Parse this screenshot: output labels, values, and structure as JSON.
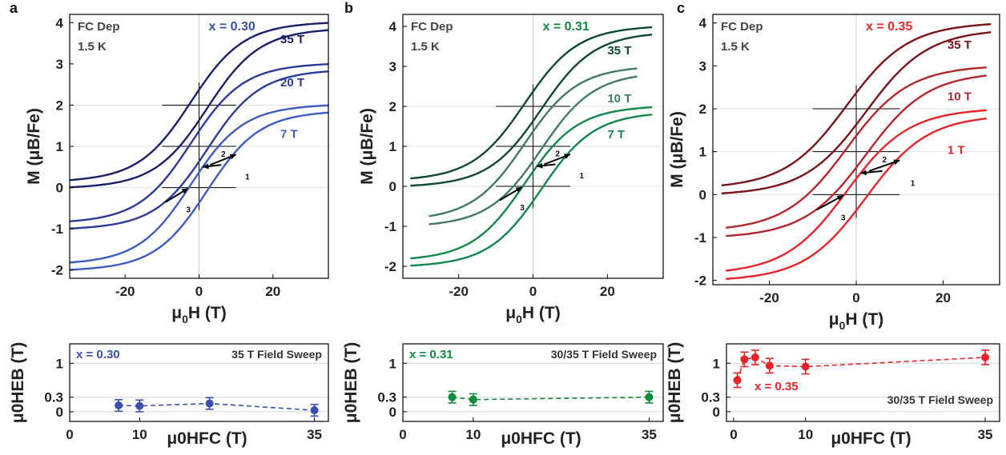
{
  "figure": {
    "panels": [
      {
        "letter": "a",
        "color": "#3a4fb0",
        "curve_colors": [
          "#1a1f6b",
          "#2b3b9a",
          "#3d5cc2",
          "#2a7fd0"
        ],
        "top": {
          "xlabel_main": "μ",
          "xlabel_sub": "0",
          "xlabel_rest": "H (T)",
          "ylabel": "M (μB/Fe)",
          "text_fc": "FC Dep",
          "text_temp": "1.5 K",
          "text_x": "x = 0.30",
          "field_labels": [
            "35 T",
            "20 T",
            "7 T"
          ],
          "sweep_numbers": [
            "1",
            "2",
            "3"
          ]
        },
        "bottom": {
          "text_x": "x = 0.30",
          "text_sweep": "35 T Field Sweep"
        }
      },
      {
        "letter": "b",
        "color": "#0f8a3e",
        "curve_colors": [
          "#0f4a30",
          "#3f7a62",
          "#12874a"
        ],
        "top": {
          "xlabel_main": "μ",
          "xlabel_sub": "0",
          "xlabel_rest": "H (T)",
          "ylabel": "M (μB/Fe)",
          "text_fc": "FC Dep",
          "text_temp": "1.5 K",
          "text_x": "x = 0.31",
          "field_labels": [
            "35 T",
            "10 T",
            "7 T"
          ],
          "sweep_numbers": [
            "1",
            "2",
            "3"
          ]
        },
        "bottom": {
          "text_x": "x = 0.31",
          "text_sweep": "30/35 T Field Sweep"
        }
      },
      {
        "letter": "c",
        "color": "#e8242a",
        "curve_colors": [
          "#7a1418",
          "#b3262d",
          "#e8242a"
        ],
        "top": {
          "xlabel_main": "μ",
          "xlabel_sub": "0",
          "xlabel_rest": "H (T)",
          "ylabel": "M (μB/Fe)",
          "text_fc": "FC Dep",
          "text_temp": "1.5 K",
          "text_x": "x = 0.35",
          "field_labels": [
            "35 T",
            "10 T",
            "1 T"
          ],
          "sweep_numbers": [
            "1",
            "2",
            "3"
          ]
        },
        "bottom": {
          "text_x": "x = 0.35",
          "text_sweep": "30/35 T Field Sweep"
        }
      }
    ],
    "bottom_xlabel": "μ0HFC (T)",
    "bottom_ylabel": "μ0HEB (T)"
  },
  "chart_data": [
    {
      "type": "line",
      "panel": "a",
      "xlabel": "μ0H (T)",
      "ylabel": "M (μB/Fe)",
      "xlim": [
        -35,
        35
      ],
      "ylim": [
        -2.2,
        4.2
      ],
      "xticks": [
        -20,
        0,
        20
      ],
      "yticks": [
        -2,
        -1,
        0,
        1,
        2,
        3,
        4
      ],
      "grid": "zero lines only",
      "series": [
        {
          "name": "35 T",
          "offset": 2,
          "x": [
            -35,
            -25,
            -15,
            -10,
            -5,
            0,
            5,
            10,
            15,
            20,
            25,
            30,
            35
          ],
          "values": [
            -2.0,
            -1.6,
            -1.0,
            -0.6,
            -0.25,
            0.1,
            0.3,
            0.55,
            0.9,
            1.3,
            1.65,
            1.9,
            2.05
          ]
        },
        {
          "name": "20 T",
          "offset": 1,
          "x": [
            -35,
            -25,
            -15,
            -10,
            -5,
            0,
            5,
            10,
            15,
            20,
            25,
            30,
            35
          ],
          "values": [
            -2.05,
            -1.65,
            -1.05,
            -0.65,
            -0.3,
            0.1,
            0.3,
            0.55,
            0.9,
            1.3,
            1.65,
            1.9,
            2.05
          ]
        },
        {
          "name": "7 T",
          "offset": 0,
          "x": [
            -35,
            -25,
            -15,
            -10,
            -5,
            0,
            5,
            10,
            15,
            20,
            25,
            30,
            35
          ],
          "values": [
            -2.05,
            -1.7,
            -1.1,
            -0.7,
            -0.3,
            0.1,
            0.3,
            0.55,
            0.9,
            1.3,
            1.65,
            1.9,
            2.05
          ]
        }
      ]
    },
    {
      "type": "line",
      "panel": "b",
      "xlabel": "μ0H (T)",
      "ylabel": "M (μB/Fe)",
      "xlim": [
        -35,
        35
      ],
      "ylim": [
        -2.3,
        4.3
      ],
      "xticks": [
        -20,
        0,
        20
      ],
      "yticks": [
        -2,
        -1,
        0,
        1,
        2,
        3,
        4
      ],
      "grid": "zero lines only",
      "series": [
        {
          "name": "35 T",
          "offset": 2,
          "x": [
            -33,
            -25,
            -18,
            -12,
            -6,
            0,
            6,
            12,
            18,
            25,
            32
          ],
          "values": [
            -1.7,
            -1.55,
            -1.2,
            -0.65,
            -0.2,
            0.05,
            0.3,
            0.7,
            1.3,
            1.65,
            1.8
          ]
        },
        {
          "name": "10 T",
          "offset": 1,
          "x": [
            -28,
            -22,
            -16,
            -10,
            -5,
            0,
            5,
            10,
            16,
            22,
            28
          ],
          "values": [
            -1.65,
            -1.45,
            -1.05,
            -0.55,
            -0.2,
            0.05,
            0.3,
            0.6,
            1.1,
            1.45,
            1.65
          ]
        },
        {
          "name": "7 T",
          "offset": 0,
          "x": [
            -33,
            -25,
            -18,
            -12,
            -6,
            0,
            6,
            12,
            18,
            25,
            32
          ],
          "values": [
            -1.72,
            -1.57,
            -1.22,
            -0.67,
            -0.22,
            0.05,
            0.3,
            0.7,
            1.3,
            1.65,
            1.8
          ]
        }
      ]
    },
    {
      "type": "line",
      "panel": "c",
      "xlabel": "μ0H (T)",
      "ylabel": "M (μB/Fe)",
      "xlim": [
        -33,
        33
      ],
      "ylim": [
        -2.1,
        4.2
      ],
      "xticks": [
        -20,
        0,
        20
      ],
      "yticks": [
        -2,
        -1,
        0,
        1,
        2,
        3,
        4
      ],
      "grid": "zero lines only",
      "series": [
        {
          "name": "35 T",
          "offset": 2,
          "x": [
            -31,
            -25,
            -18,
            -12,
            -6,
            0,
            6,
            12,
            18,
            25,
            31
          ],
          "values": [
            -1.65,
            -1.5,
            -1.1,
            -0.65,
            -0.25,
            0.0,
            0.3,
            0.7,
            1.2,
            1.55,
            1.7
          ]
        },
        {
          "name": "10 T",
          "offset": 1,
          "x": [
            -30,
            -24,
            -18,
            -12,
            -6,
            0,
            6,
            12,
            18,
            24,
            30
          ],
          "values": [
            -1.55,
            -1.4,
            -1.05,
            -0.6,
            -0.25,
            0.0,
            0.3,
            0.6,
            1.05,
            1.45,
            1.6
          ]
        },
        {
          "name": "1 T",
          "offset": 0,
          "x": [
            -30,
            -24,
            -18,
            -12,
            -6,
            0,
            6,
            12,
            18,
            24,
            30
          ],
          "values": [
            -1.6,
            -1.4,
            -1.0,
            -0.55,
            -0.25,
            0.0,
            0.25,
            0.55,
            0.95,
            1.4,
            1.55
          ]
        }
      ]
    },
    {
      "type": "scatter",
      "panel": "a-bottom",
      "xlabel": "μ0HFC (T)",
      "ylabel": "μ0HEB (T)",
      "xlim": [
        0,
        37
      ],
      "ylim": [
        -0.2,
        1.4
      ],
      "xticks": [
        0,
        10,
        35
      ],
      "yticks": [
        0,
        0.3,
        1
      ],
      "x": [
        7,
        10,
        20,
        35
      ],
      "values": [
        0.13,
        0.12,
        0.17,
        0.03
      ],
      "errors": [
        0.12,
        0.12,
        0.12,
        0.12
      ]
    },
    {
      "type": "scatter",
      "panel": "b-bottom",
      "xlabel": "μ0HFC (T)",
      "ylabel": "μ0HEB (T)",
      "xlim": [
        0,
        37
      ],
      "ylim": [
        -0.2,
        1.4
      ],
      "xticks": [
        0,
        10,
        35
      ],
      "yticks": [
        0,
        0.3,
        1
      ],
      "x": [
        7,
        10,
        35
      ],
      "values": [
        0.3,
        0.25,
        0.3
      ],
      "errors": [
        0.12,
        0.12,
        0.12
      ]
    },
    {
      "type": "scatter",
      "panel": "c-bottom",
      "xlabel": "μ0HFC (T)",
      "ylabel": "μ0HEB (T)",
      "xlim": [
        -1,
        37
      ],
      "ylim": [
        -0.2,
        1.4
      ],
      "xticks": [
        0,
        10,
        35
      ],
      "yticks": [
        0,
        0.3,
        1
      ],
      "x": [
        0.5,
        1.5,
        3,
        5,
        10,
        35
      ],
      "values": [
        0.65,
        1.08,
        1.12,
        0.95,
        0.93,
        1.12
      ],
      "errors": [
        0.15,
        0.15,
        0.15,
        0.15,
        0.15,
        0.15
      ]
    }
  ]
}
